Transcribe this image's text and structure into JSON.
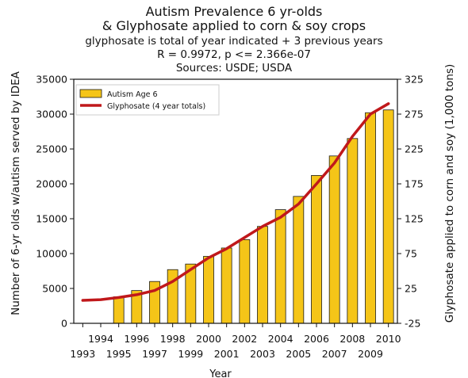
{
  "chart_data": {
    "type": "bar+line",
    "title_lines": [
      "Autism Prevalence 6 yr-olds",
      "& Glyphosate applied to corn & soy crops"
    ],
    "subtitle_lines": [
      "glyphosate is total of year indicated + 3 previous years",
      "R = 0.9972, p <= 2.366e-07",
      "Sources: USDE; USDA"
    ],
    "xlabel": "Year",
    "ylabel_left": "Number of 6-yr olds w/autism served by IDEA",
    "ylabel_right": "Glyphosate applied to corn and soy (1,000 tons)",
    "years": [
      1993,
      1994,
      1995,
      1996,
      1997,
      1998,
      1999,
      2000,
      2001,
      2002,
      2003,
      2004,
      2005,
      2006,
      2007,
      2008,
      2009,
      2010
    ],
    "x_ticks_top": [
      "1994",
      "1996",
      "1998",
      "2000",
      "2002",
      "2004",
      "2006",
      "2008",
      "2010"
    ],
    "x_ticks_bottom": [
      "1993",
      "1995",
      "1997",
      "1999",
      "2001",
      "2003",
      "2005",
      "2007",
      "2009"
    ],
    "ylim_left": [
      0,
      35000
    ],
    "yticks_left": [
      "0",
      "5000",
      "10000",
      "15000",
      "20000",
      "25000",
      "30000",
      "35000"
    ],
    "ylim_right": [
      -25,
      325
    ],
    "yticks_right": [
      "-25",
      "25",
      "75",
      "125",
      "175",
      "225",
      "275",
      "325"
    ],
    "legend_position": "top-left",
    "grid": false,
    "series": [
      {
        "name": "Autism Age 6",
        "kind": "bar",
        "axis": "left",
        "color": "#f5c518",
        "edge": "#1a1a1a",
        "years": [
          1995,
          1996,
          1997,
          1998,
          1999,
          2000,
          2001,
          2002,
          2003,
          2004,
          2005,
          2006,
          2007,
          2008,
          2009,
          2010
        ],
        "values": [
          3800,
          4700,
          6000,
          7700,
          8500,
          9600,
          10800,
          12000,
          13900,
          16300,
          18200,
          21200,
          24000,
          26500,
          30200,
          30600
        ]
      },
      {
        "name": "Glyphosate (4 year totals)",
        "kind": "line",
        "axis": "right",
        "color": "#c0181b",
        "years": [
          1993,
          1994,
          1995,
          1996,
          1997,
          1998,
          1999,
          2000,
          2001,
          2002,
          2003,
          2004,
          2005,
          2006,
          2007,
          2008,
          2009,
          2010
        ],
        "values": [
          8,
          9,
          12,
          16,
          22,
          35,
          52,
          69,
          82,
          98,
          114,
          127,
          146,
          175,
          205,
          243,
          275,
          290
        ]
      }
    ]
  }
}
